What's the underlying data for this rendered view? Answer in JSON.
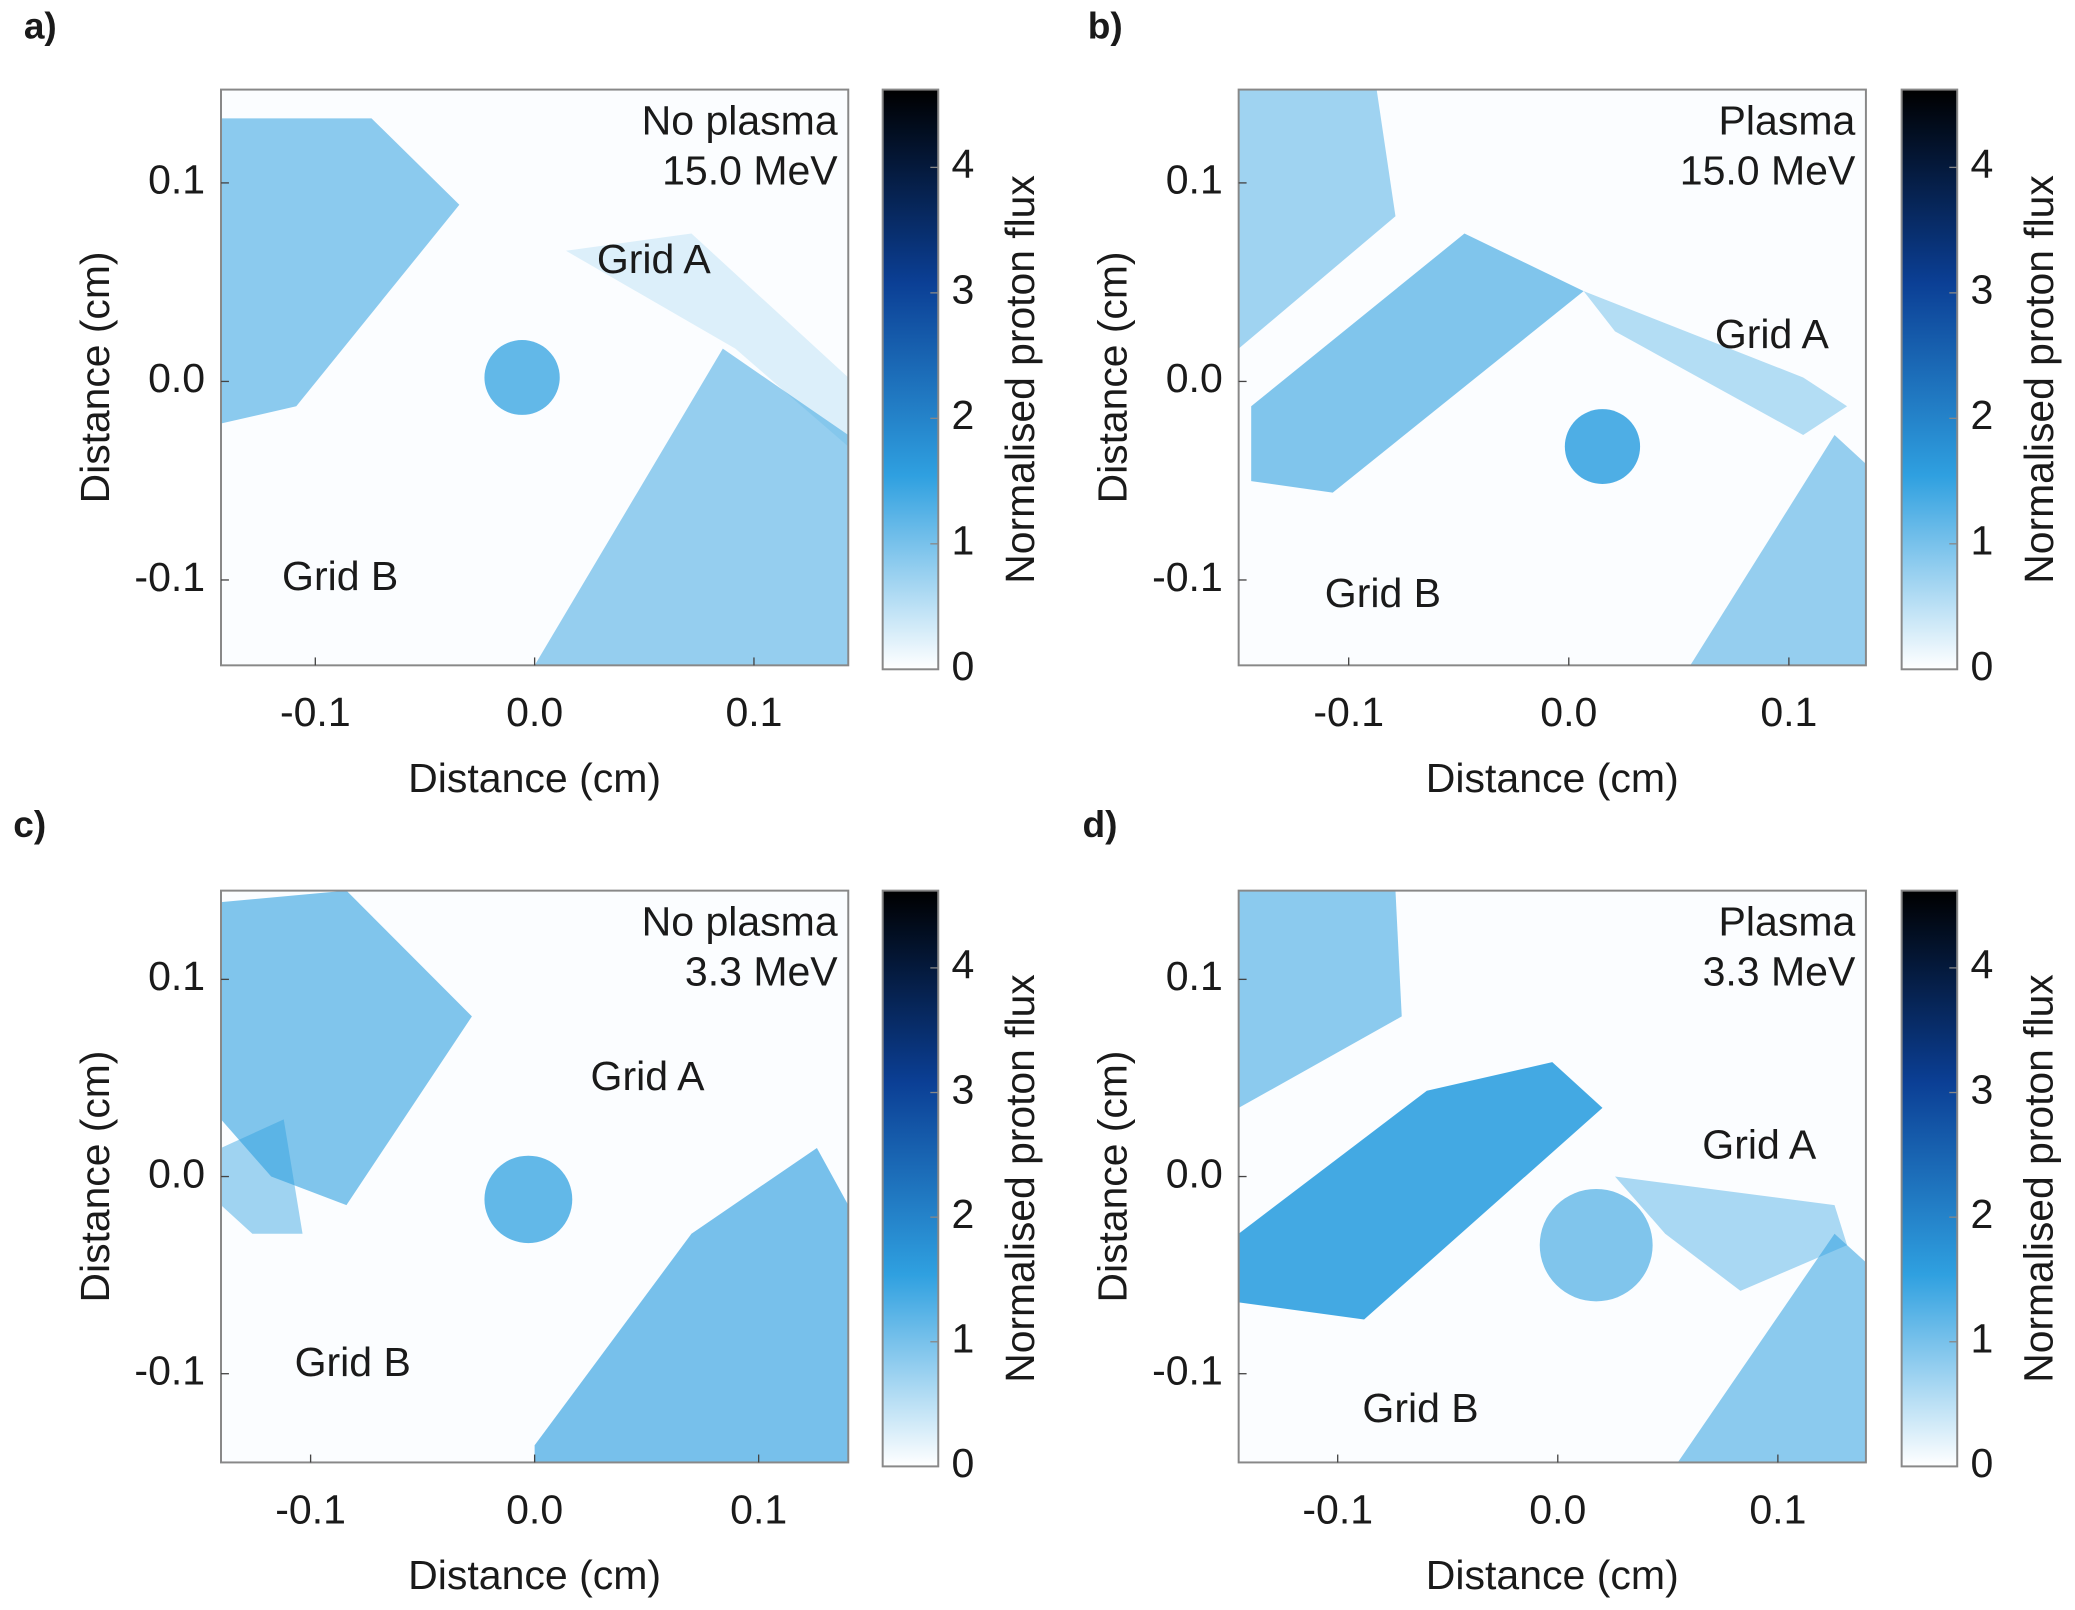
{
  "chart_data": [
    {
      "type": "heatmap",
      "panel_label": "a)",
      "annotations": [
        "No plasma",
        "15.0 MeV",
        "Grid A",
        "Grid B"
      ],
      "xlabel": "Distance (cm)",
      "ylabel": "Distance (cm)",
      "colorbar_label": "Normalised proton flux",
      "xlim": [
        -0.143,
        0.143
      ],
      "ylim": [
        -0.143,
        0.147
      ],
      "xticks": [
        -0.1,
        {
          "value": 0,
          "label": "0.0"
        },
        0.1
      ],
      "yticks": [
        -0.1,
        {
          "value": 0,
          "label": "0.0"
        },
        0.1
      ],
      "clim": [
        0,
        4.62
      ],
      "cticks": [
        0,
        1,
        2,
        3,
        4
      ],
      "colormap": [
        "#ffffff",
        "#2fa0e0",
        "#0b3f95",
        "#000000"
      ]
    },
    {
      "type": "heatmap",
      "panel_label": "b)",
      "annotations": [
        "Plasma",
        "15.0 MeV",
        "Grid A",
        "Grid B"
      ],
      "xlabel": "Distance (cm)",
      "ylabel": "Distance (cm)",
      "colorbar_label": "Normalised proton flux",
      "xlim": [
        -0.15,
        0.135
      ],
      "ylim": [
        -0.143,
        0.147
      ],
      "xticks": [
        -0.1,
        {
          "value": 0,
          "label": "0.0"
        },
        0.1
      ],
      "yticks": [
        -0.1,
        {
          "value": 0,
          "label": "0.0"
        },
        0.1
      ],
      "clim": [
        0,
        4.62
      ],
      "cticks": [
        0,
        1,
        2,
        3,
        4
      ],
      "colormap": [
        "#ffffff",
        "#2fa0e0",
        "#0b3f95",
        "#000000"
      ]
    },
    {
      "type": "heatmap",
      "panel_label": "c)",
      "annotations": [
        "No plasma",
        "3.3 MeV",
        "Grid A",
        "Grid B"
      ],
      "xlabel": "Distance (cm)",
      "ylabel": "Distance (cm)",
      "colorbar_label": "Normalised proton flux",
      "xlim": [
        -0.14,
        0.14
      ],
      "ylim": [
        -0.145,
        0.145
      ],
      "xticks": [
        -0.1,
        {
          "value": 0,
          "label": "0.0"
        },
        0.1
      ],
      "yticks": [
        -0.1,
        {
          "value": 0,
          "label": "0.0"
        },
        0.1
      ],
      "clim": [
        0,
        4.62
      ],
      "cticks": [
        0,
        1,
        2,
        3,
        4
      ],
      "colormap": [
        "#ffffff",
        "#2fa0e0",
        "#0b3f95",
        "#000000"
      ]
    },
    {
      "type": "heatmap",
      "panel_label": "d)",
      "annotations": [
        "Plasma",
        "3.3 MeV",
        "Grid A",
        "Grid B"
      ],
      "xlabel": "Distance (cm)",
      "ylabel": "Distance (cm)",
      "colorbar_label": "Normalised proton flux",
      "xlim": [
        -0.145,
        0.14
      ],
      "ylim": [
        -0.145,
        0.145
      ],
      "xticks": [
        -0.1,
        {
          "value": 0,
          "label": "0.0"
        },
        0.1
      ],
      "yticks": [
        -0.1,
        {
          "value": 0,
          "label": "0.0"
        },
        0.1
      ],
      "clim": [
        0,
        4.62
      ],
      "cticks": [
        0,
        1,
        2,
        3,
        4
      ],
      "colormap": [
        "#ffffff",
        "#2fa0e0",
        "#0b3f95",
        "#000000"
      ]
    }
  ]
}
